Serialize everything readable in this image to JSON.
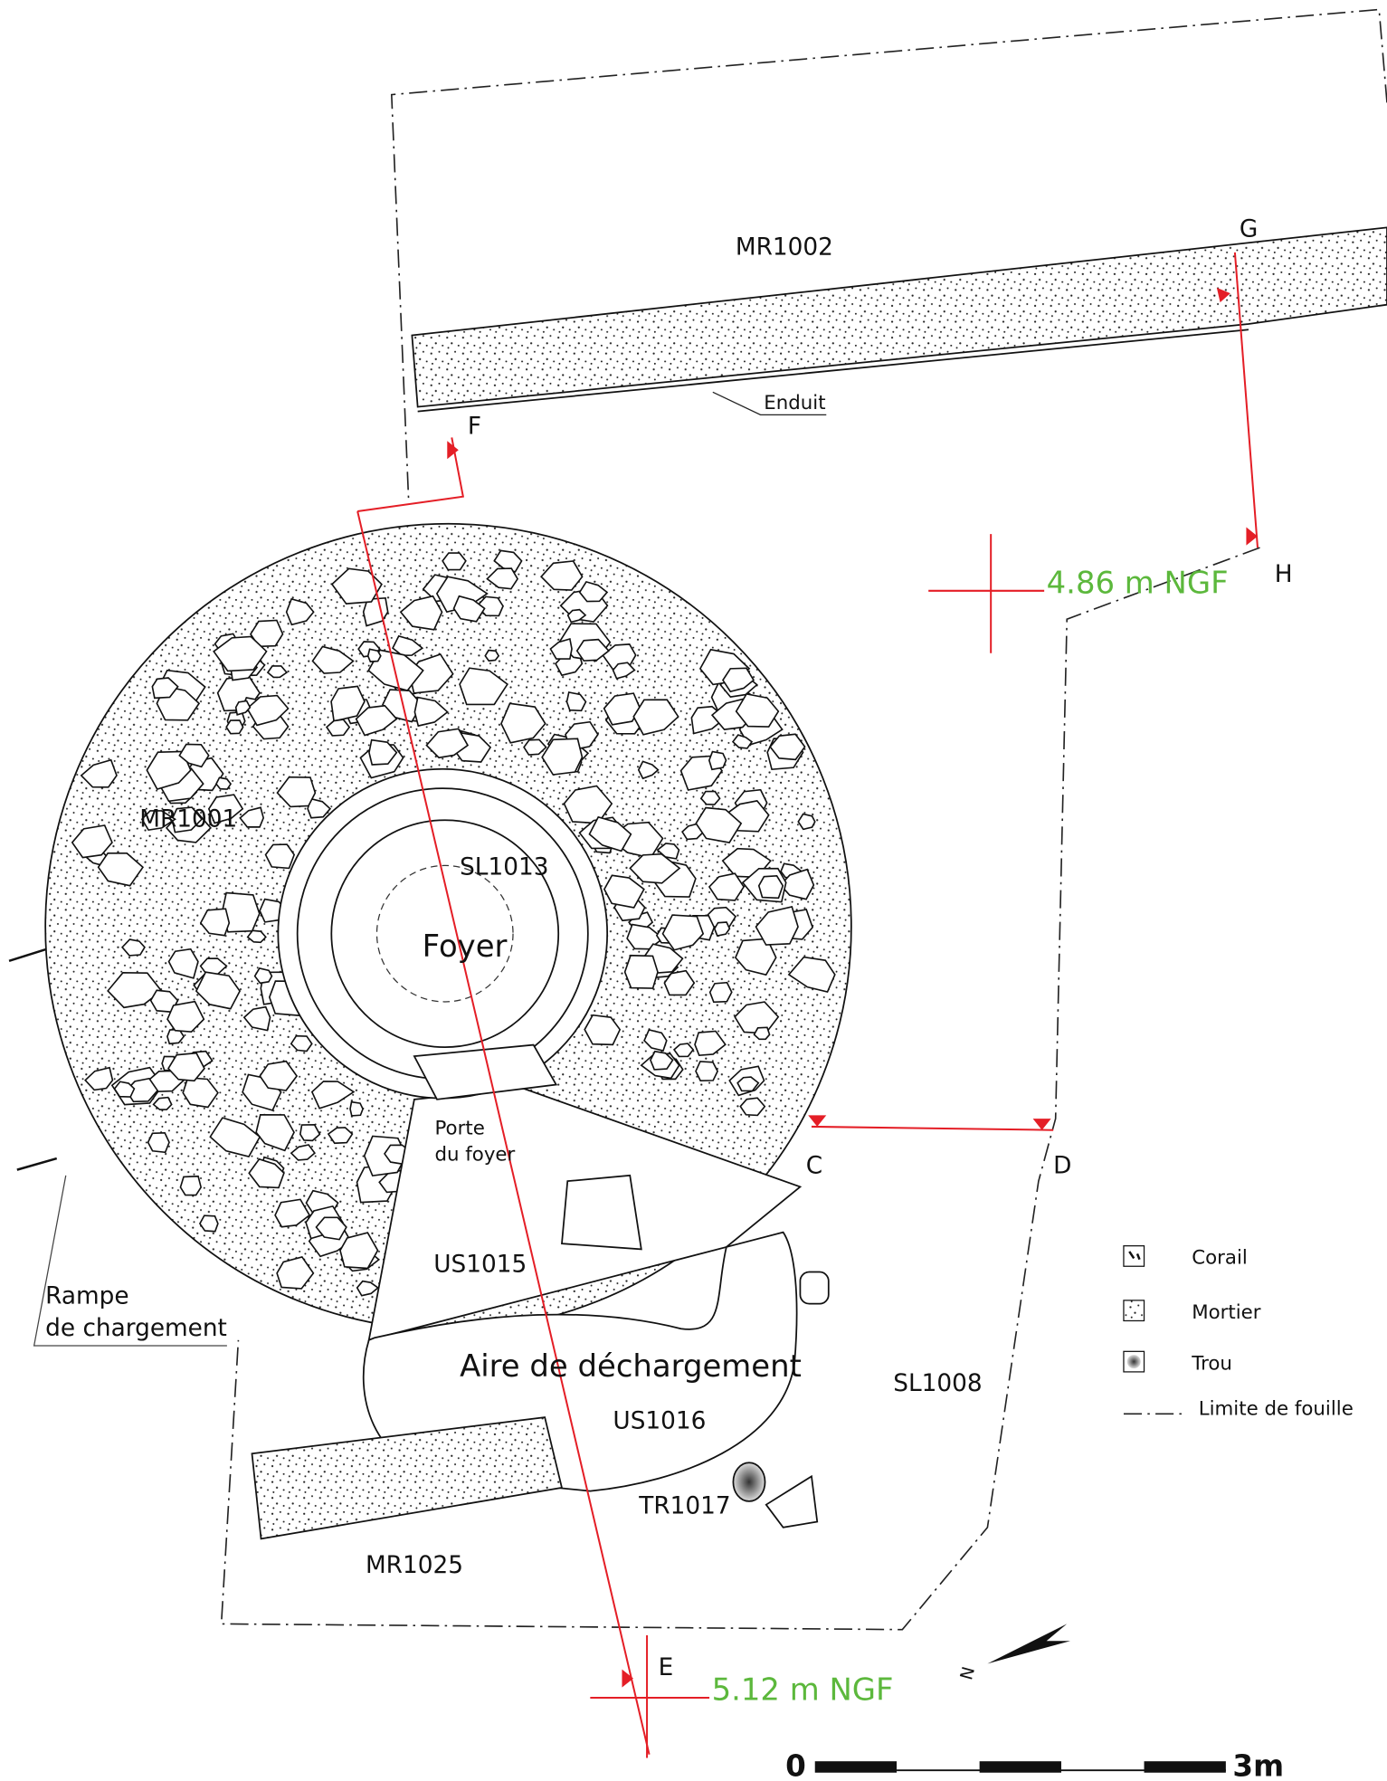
{
  "walls": [
    "MR1002",
    "MR1001",
    "MR1025"
  ],
  "features": {
    "enduit": "Enduit",
    "sole": "SL1013",
    "foyer": "Foyer",
    "porte": [
      "Porte",
      "du foyer"
    ],
    "rampe": [
      "Rampe",
      "de chargement"
    ],
    "us1015": "US1015",
    "aire": "Aire de déchargement",
    "us1016": "US1016",
    "sl1008": "SL1008",
    "tr1017": "TR1017"
  },
  "section_points": [
    "C",
    "D",
    "E",
    "F",
    "G",
    "H"
  ],
  "elevations": [
    "4.86 m NGF",
    "5.12 m NGF"
  ],
  "legend": [
    "Corail",
    "Mortier",
    "Trou",
    "Limite de fouille"
  ],
  "north": "N",
  "scale": [
    "0",
    "3m"
  ]
}
